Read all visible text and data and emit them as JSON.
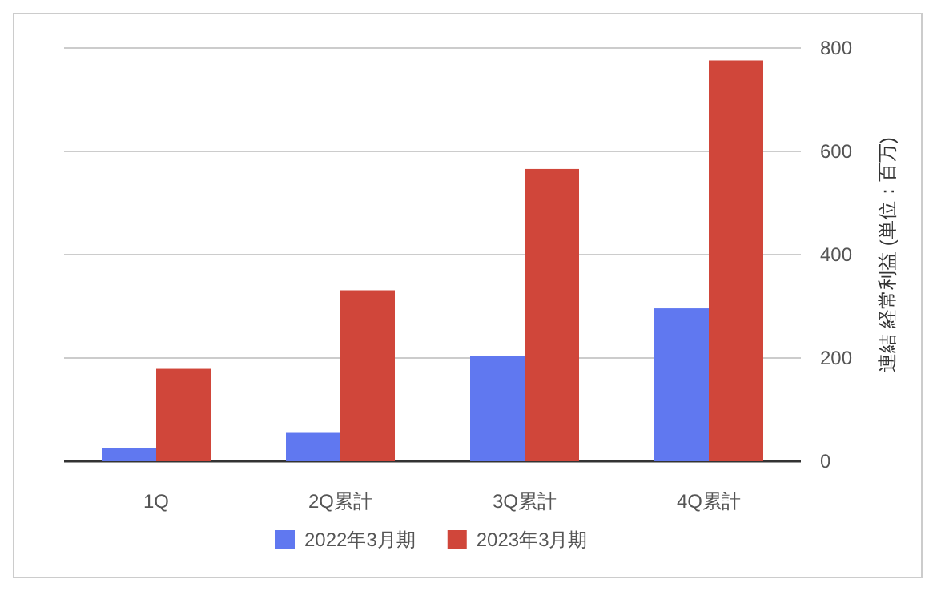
{
  "chart_data": {
    "type": "bar",
    "ylabel": "連結 経常利益 (単位：百万)",
    "categories": [
      "1Q",
      "2Q累計",
      "3Q累計",
      "4Q累計"
    ],
    "series": [
      {
        "name": "2022年3月期",
        "color": "#6078f0",
        "values": [
          25,
          55,
          204,
          296
        ]
      },
      {
        "name": "2023年3月期",
        "color": "#d0463a",
        "values": [
          179,
          331,
          566,
          776
        ]
      }
    ],
    "ylim": [
      0,
      800
    ],
    "yticks": [
      0,
      200,
      400,
      600,
      800
    ],
    "grid": "y",
    "legend": "bottom"
  }
}
